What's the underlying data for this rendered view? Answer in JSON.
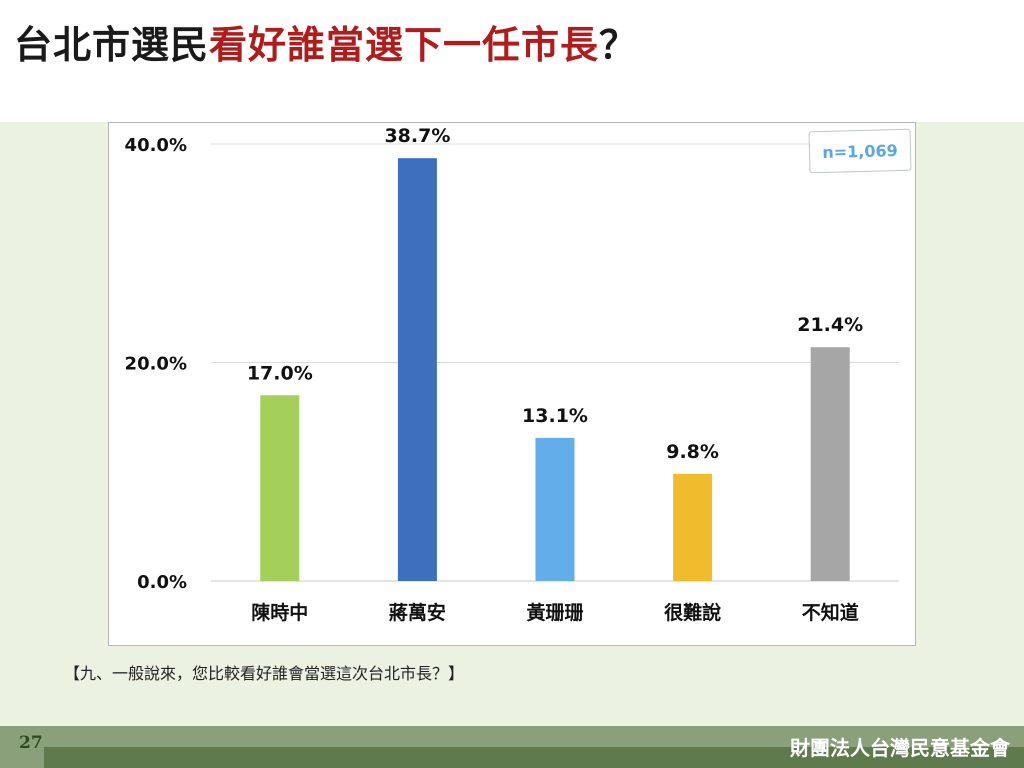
{
  "header": {
    "title_prefix": "台北市選民",
    "title_highlight": "看好誰當選下一任市長",
    "title_suffix": "？"
  },
  "colors": {
    "title_highlight": "#b01c1c",
    "content_background": "#ebf2e2",
    "footer_background": "#8aa07a",
    "footer_band": "#5f7a4d",
    "badge_text": "#5aa7e6"
  },
  "sample": {
    "label": "n=1,069"
  },
  "question": {
    "text": "【九、一般說來，您比較看好誰會當選這次台北市長？】"
  },
  "footer": {
    "page_number": "27",
    "organization": "財團法人台灣民意基金會"
  },
  "chart_data": {
    "type": "bar",
    "categories": [
      "陳時中",
      "蔣萬安",
      "黃珊珊",
      "很難說",
      "不知道"
    ],
    "values": [
      17.0,
      38.7,
      13.1,
      9.8,
      21.4
    ],
    "value_labels": [
      "17.0%",
      "38.7%",
      "13.1%",
      "9.8%",
      "21.4%"
    ],
    "colors": [
      "#a4cf5a",
      "#3d6fbf",
      "#63aeea",
      "#f0bc2d",
      "#a6a6a6"
    ],
    "title": "",
    "xlabel": "",
    "ylabel": "",
    "ylim": [
      0,
      40
    ],
    "yticks": [
      0,
      20,
      40
    ],
    "ytick_labels": [
      "0.0%",
      "20.0%",
      "40.0%"
    ],
    "grid": true,
    "legend": false
  }
}
